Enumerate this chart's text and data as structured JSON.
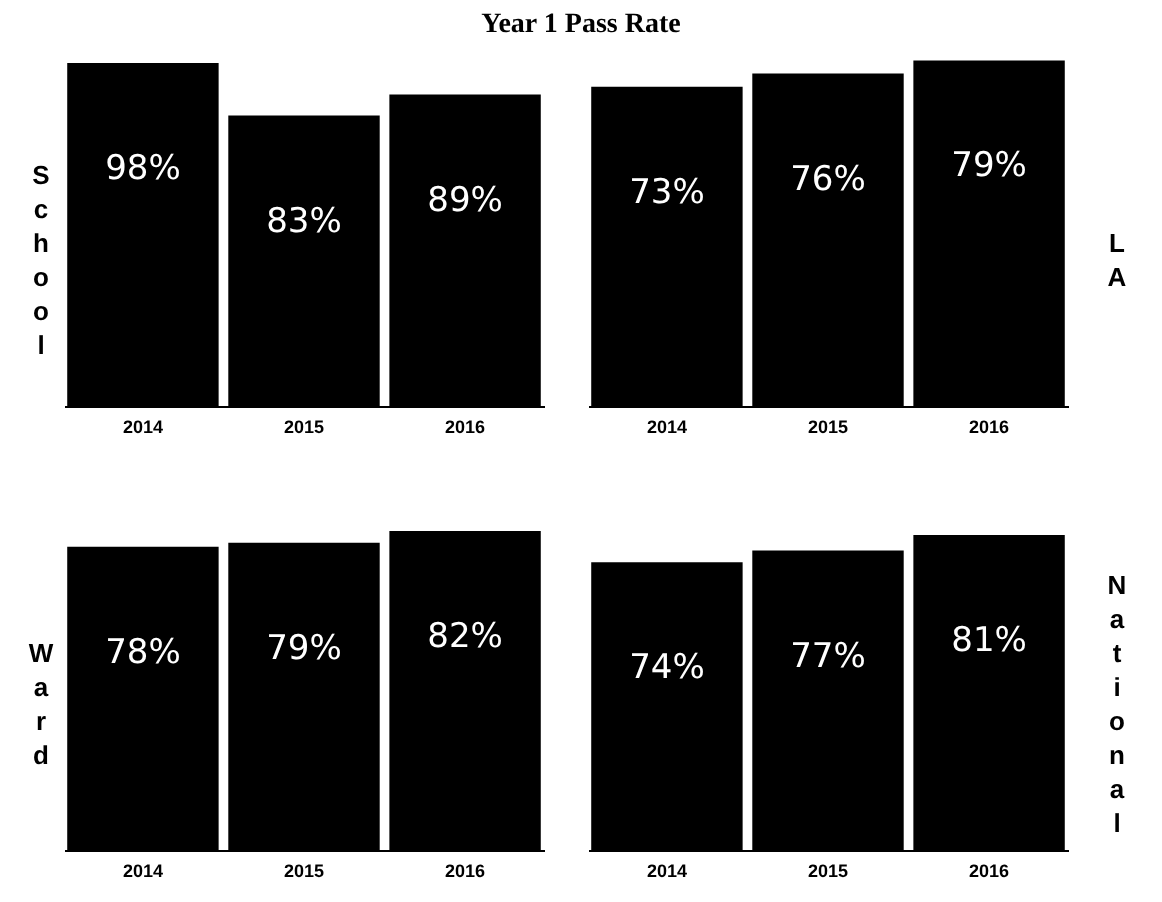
{
  "chart_data": [
    {
      "type": "bar",
      "title": "Year 1 Pass Rate",
      "ylabel": "School",
      "categories": [
        "2014",
        "2015",
        "2016"
      ],
      "values": [
        98,
        83,
        89
      ],
      "value_labels": [
        "98%",
        "83%",
        "89%"
      ],
      "color": "#000000"
    },
    {
      "type": "bar",
      "y2label": "LA",
      "categories": [
        "2014",
        "2015",
        "2016"
      ],
      "values": [
        73,
        76,
        79
      ],
      "value_labels": [
        "73%",
        "76%",
        "79%"
      ],
      "color": "#000000"
    },
    {
      "type": "bar",
      "ylabel": "Ward",
      "categories": [
        "2014",
        "2015",
        "2016"
      ],
      "values": [
        78,
        79,
        82
      ],
      "value_labels": [
        "78%",
        "79%",
        "82%"
      ],
      "color": "#000000"
    },
    {
      "type": "bar",
      "y2label": "National",
      "categories": [
        "2014",
        "2015",
        "2016"
      ],
      "values": [
        74,
        77,
        81
      ],
      "value_labels": [
        "74%",
        "77%",
        "81%"
      ],
      "color": "#000000"
    }
  ]
}
